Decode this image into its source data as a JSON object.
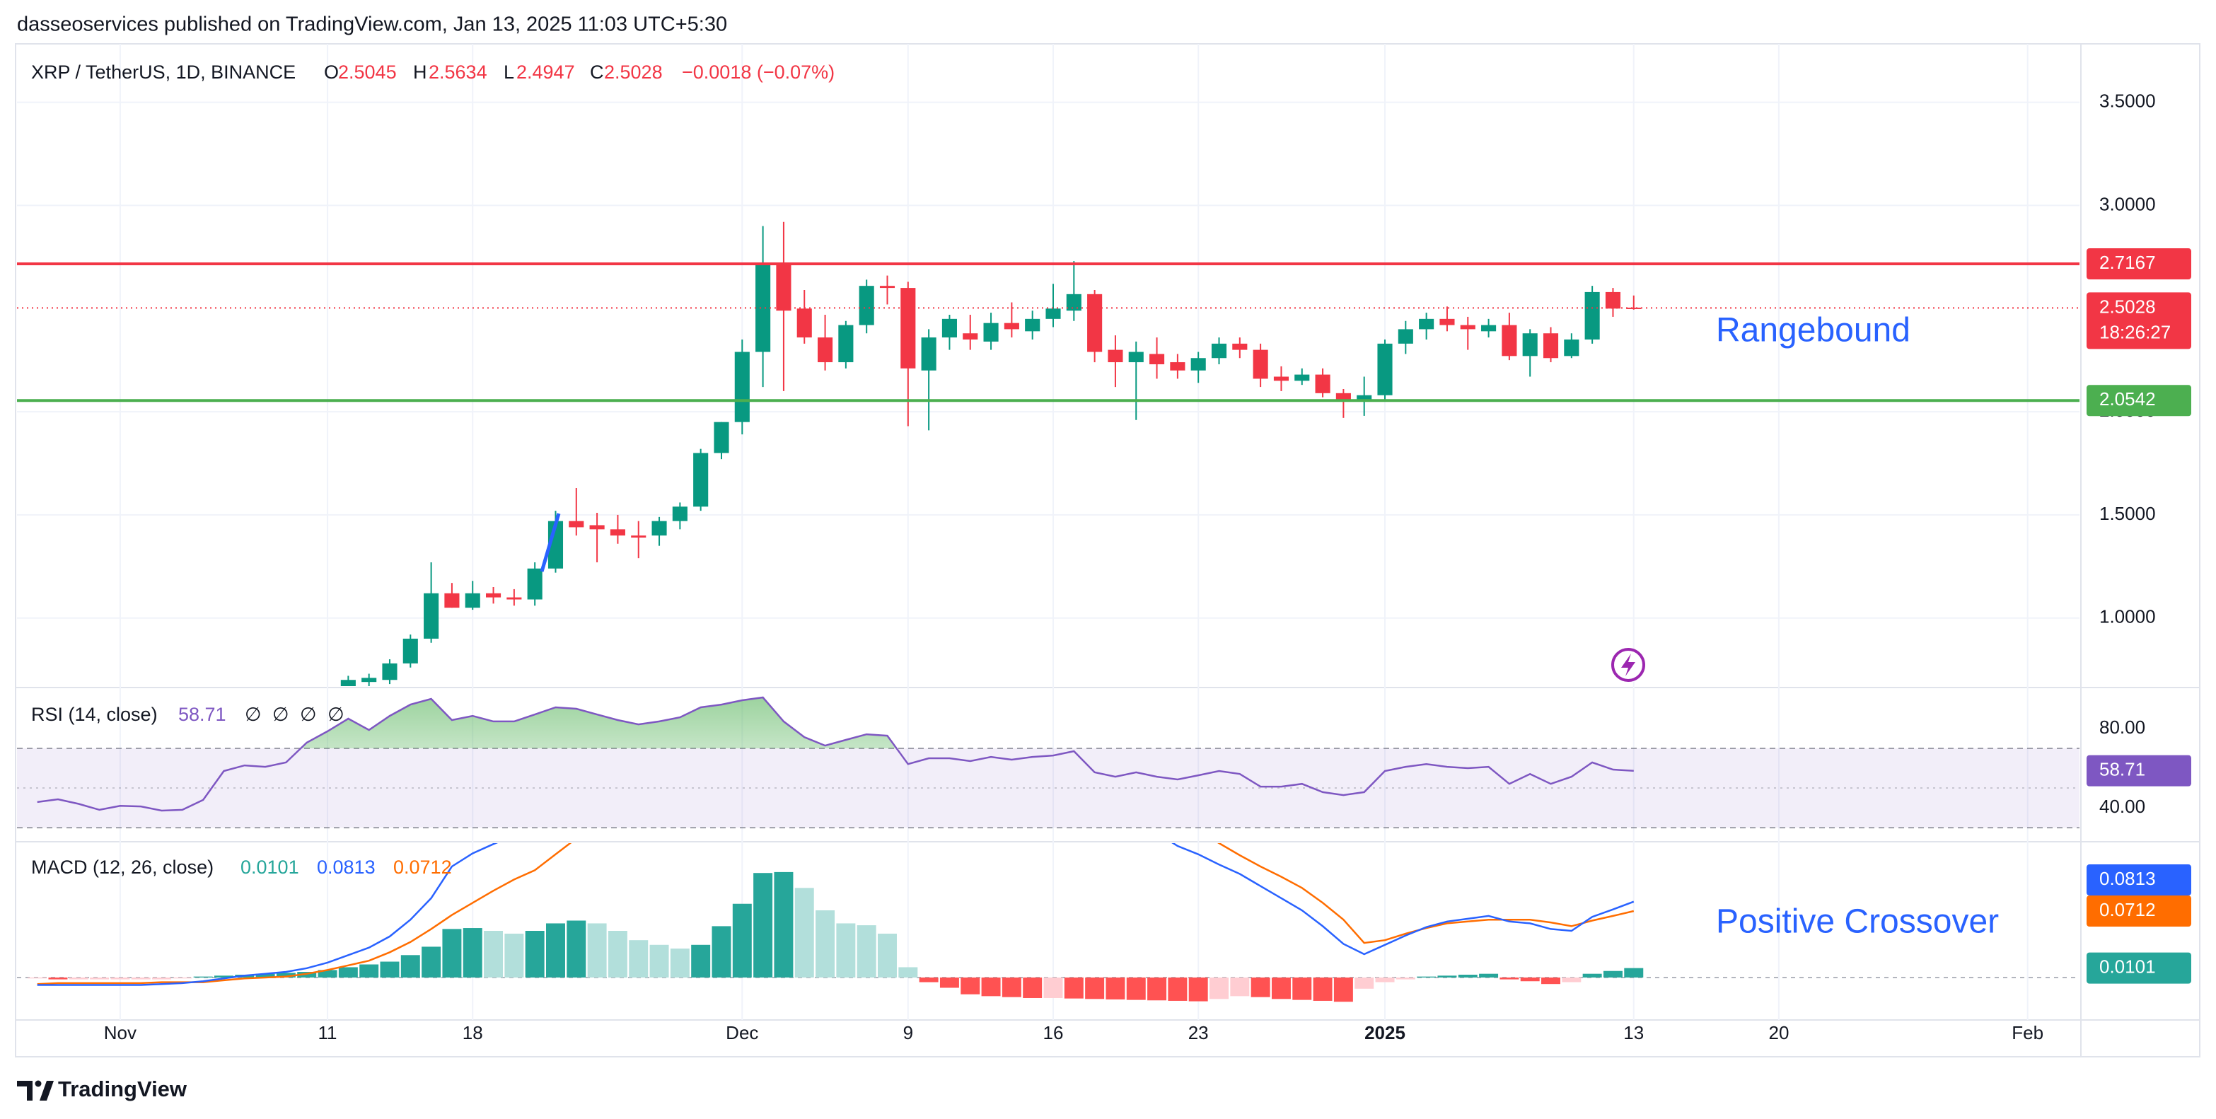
{
  "header": {
    "publisher": "dasseoservices published on TradingView.com, Jan 13, 2025 11:03 UTC+5:30"
  },
  "footer": {
    "brand": "TradingView"
  },
  "chart_data": [
    {
      "type": "candlestick",
      "title": "XRP / TetherUS, 1D, BINANCE",
      "ohlc_labels": [
        "O",
        "H",
        "L",
        "C"
      ],
      "change": "−0.0018 (−0.07%)",
      "countdown": "18:26:27",
      "annotations": [
        "Rangebound"
      ],
      "up_color": "#089981",
      "down_color": "#f23645",
      "grid": true,
      "categories": [
        null,
        null,
        null,
        null,
        "Nov",
        null,
        null,
        null,
        null,
        null,
        null,
        null,
        null,
        null,
        "11",
        null,
        null,
        null,
        null,
        null,
        null,
        "18",
        null,
        null,
        null,
        null,
        null,
        null,
        null,
        null,
        null,
        null,
        null,
        null,
        "Dec",
        null,
        null,
        null,
        null,
        null,
        null,
        null,
        "9",
        null,
        null,
        null,
        null,
        null,
        null,
        "16",
        null,
        null,
        null,
        null,
        null,
        null,
        "23",
        null,
        null,
        null,
        null,
        null,
        null,
        null,
        null,
        "2025",
        null,
        null,
        null,
        null,
        null,
        null,
        null,
        null,
        null,
        null,
        null,
        "13",
        null,
        null,
        null,
        null,
        null,
        null,
        "20",
        null,
        null,
        null,
        null,
        null,
        null,
        null,
        null,
        null,
        null,
        null,
        "Feb",
        null,
        null
      ],
      "open": [
        null,
        null,
        null,
        null,
        null,
        null,
        null,
        null,
        null,
        null,
        null,
        null,
        null,
        null,
        null,
        0.66,
        0.69,
        0.7,
        0.78,
        0.9,
        1.12,
        1.05,
        1.12,
        1.1,
        1.09,
        1.24,
        1.47,
        1.45,
        1.43,
        1.4,
        1.4,
        1.47,
        1.54,
        1.8,
        1.95,
        2.29,
        2.72,
        2.5,
        2.36,
        2.24,
        2.42,
        2.61,
        2.6,
        2.2,
        2.36,
        2.38,
        2.34,
        2.43,
        2.39,
        2.45,
        2.49,
        2.57,
        2.3,
        2.24,
        2.28,
        2.24,
        2.2,
        2.26,
        2.33,
        2.3,
        2.17,
        2.15,
        2.18,
        2.09,
        2.05,
        2.08,
        2.33,
        2.4,
        2.45,
        2.42,
        2.39,
        2.42,
        2.27,
        2.38,
        2.27,
        2.35,
        2.58,
        2.5045,
        null,
        null,
        null,
        null,
        null,
        null,
        null,
        null,
        null,
        null,
        null,
        null,
        null,
        null,
        null,
        null,
        null,
        null,
        null,
        null,
        null
      ],
      "high": [
        null,
        null,
        null,
        null,
        null,
        null,
        null,
        null,
        null,
        null,
        null,
        null,
        null,
        null,
        null,
        0.72,
        0.73,
        0.8,
        0.92,
        1.27,
        1.17,
        1.18,
        1.15,
        1.14,
        1.27,
        1.52,
        1.63,
        1.51,
        1.5,
        1.47,
        1.49,
        1.56,
        1.82,
        1.95,
        2.35,
        2.9,
        2.92,
        2.59,
        2.47,
        2.44,
        2.64,
        2.66,
        2.63,
        2.4,
        2.47,
        2.47,
        2.48,
        2.53,
        2.49,
        2.62,
        2.73,
        2.59,
        2.37,
        2.34,
        2.36,
        2.28,
        2.29,
        2.36,
        2.36,
        2.33,
        2.22,
        2.21,
        2.21,
        2.11,
        2.17,
        2.35,
        2.44,
        2.48,
        2.51,
        2.46,
        2.45,
        2.48,
        2.4,
        2.41,
        2.38,
        2.61,
        2.6,
        2.5634,
        null,
        null,
        null,
        null,
        null,
        null,
        null,
        null,
        null,
        null,
        null,
        null,
        null,
        null,
        null,
        null,
        null,
        null,
        null,
        null,
        null
      ],
      "low": [
        null,
        null,
        null,
        null,
        null,
        null,
        null,
        null,
        null,
        null,
        null,
        null,
        null,
        null,
        null,
        0.62,
        0.65,
        0.68,
        0.76,
        0.88,
        1.05,
        1.04,
        1.07,
        1.06,
        1.06,
        1.22,
        1.4,
        1.27,
        1.36,
        1.29,
        1.35,
        1.43,
        1.52,
        1.77,
        1.89,
        2.12,
        2.1,
        2.33,
        2.2,
        2.21,
        2.38,
        2.52,
        1.93,
        1.91,
        2.3,
        2.3,
        2.3,
        2.36,
        2.35,
        2.41,
        2.44,
        2.24,
        2.12,
        1.96,
        2.16,
        2.16,
        2.14,
        2.23,
        2.26,
        2.12,
        2.1,
        2.13,
        2.07,
        1.97,
        1.98,
        2.06,
        2.28,
        2.35,
        2.39,
        2.3,
        2.36,
        2.25,
        2.17,
        2.24,
        2.26,
        2.33,
        2.46,
        2.4947,
        null,
        null,
        null,
        null,
        null,
        null,
        null,
        null,
        null,
        null,
        null,
        null,
        null,
        null,
        null,
        null,
        null,
        null,
        null,
        null,
        null
      ],
      "close": [
        null,
        null,
        null,
        null,
        null,
        null,
        null,
        null,
        null,
        null,
        null,
        null,
        null,
        null,
        null,
        0.7,
        0.71,
        0.78,
        0.9,
        1.12,
        1.05,
        1.12,
        1.1,
        1.09,
        1.24,
        1.47,
        1.44,
        1.43,
        1.4,
        1.39,
        1.47,
        1.54,
        1.8,
        1.95,
        2.29,
        2.72,
        2.49,
        2.36,
        2.24,
        2.42,
        2.61,
        2.6,
        2.21,
        2.36,
        2.45,
        2.35,
        2.43,
        2.4,
        2.45,
        2.5,
        2.57,
        2.29,
        2.24,
        2.29,
        2.23,
        2.2,
        2.26,
        2.33,
        2.3,
        2.16,
        2.15,
        2.18,
        2.09,
        2.05,
        2.08,
        2.33,
        2.4,
        2.45,
        2.42,
        2.4,
        2.42,
        2.27,
        2.38,
        2.26,
        2.35,
        2.58,
        2.5,
        2.5028,
        null,
        null,
        null,
        null,
        null,
        null,
        null,
        null,
        null,
        null,
        null,
        null,
        null,
        null,
        null,
        null,
        null,
        null,
        null,
        null,
        null
      ],
      "ylim": [
        0.67,
        3.79
      ],
      "yticks": [
        {
          "value": 1,
          "label": "1.0000"
        },
        {
          "value": 1.5,
          "label": "1.5000"
        },
        {
          "value": 2,
          "label": "2.0000"
        },
        {
          "value": 3,
          "label": "3.0000"
        },
        {
          "value": 3.5,
          "label": "3.5000"
        }
      ],
      "levels": [
        {
          "value": 2.7167,
          "color": "#f23645"
        },
        {
          "value": 2.0542,
          "color": "#4caf50"
        }
      ]
    },
    {
      "type": "rsi",
      "title": "RSI (14, close)",
      "placeholders": "∅ ∅ ∅ ∅",
      "color": "#7e57c2",
      "values": [
        42.9,
        44.3,
        42,
        39,
        41,
        40.7,
        38.6,
        39,
        44,
        58.6,
        61.4,
        60.7,
        62.9,
        72.9,
        78.6,
        85,
        79.3,
        86.4,
        92.1,
        95,
        84.3,
        86.4,
        83.6,
        83.6,
        87.1,
        90.7,
        90,
        87.1,
        84.3,
        82.1,
        83.6,
        85.7,
        90.7,
        92.1,
        94.3,
        95.7,
        83.6,
        75.7,
        71.4,
        74.3,
        77.1,
        76.4,
        62.1,
        65,
        65,
        63.6,
        65.7,
        64.3,
        65.7,
        66.4,
        68.6,
        57.9,
        55.7,
        57.9,
        55.7,
        54.3,
        56.4,
        58.6,
        57.1,
        50.7,
        50.7,
        52.1,
        47.9,
        46.4,
        47.9,
        58.6,
        60.7,
        62.1,
        60.7,
        60,
        60.7,
        52.1,
        57.1,
        52.1,
        55.7,
        62.9,
        59.3,
        58.71,
        null,
        null,
        null,
        null,
        null,
        null,
        null,
        null,
        null,
        null,
        null,
        null,
        null,
        null,
        null,
        null,
        null,
        null,
        null,
        null,
        null
      ],
      "bands": [
        70,
        50,
        30
      ],
      "ylim": [
        23.6,
        100
      ],
      "yticks": [
        {
          "value": 80,
          "label": "80.00"
        },
        {
          "value": 40,
          "label": "40.00"
        }
      ]
    },
    {
      "type": "macd",
      "title": "MACD (12, 26, close)",
      "annotations": [
        "Positive Crossover"
      ],
      "macd_color": "#2962ff",
      "signal_color": "#ff6d00",
      "histogram_colors": {
        "grow_above": "#26a69a",
        "fall_above": "#b2dfdb",
        "grow_below": "#ffcdd2",
        "fall_below": "#ff5252"
      },
      "histogram": [
        -0.001,
        -0.002,
        -0.002,
        -0.002,
        -0.002,
        -0.002,
        -0.002,
        -0.001,
        0.001,
        0.002,
        0.003,
        0.004,
        0.005,
        0.006,
        0.008,
        0.011,
        0.014,
        0.017,
        0.024,
        0.033,
        0.052,
        0.053,
        0.05,
        0.047,
        0.05,
        0.058,
        0.061,
        0.058,
        0.05,
        0.04,
        0.035,
        0.031,
        0.035,
        0.055,
        0.079,
        0.112,
        0.113,
        0.096,
        0.072,
        0.058,
        0.056,
        0.047,
        0.011,
        -0.005,
        -0.011,
        -0.018,
        -0.02,
        -0.021,
        -0.022,
        -0.022,
        -0.0225,
        -0.023,
        -0.0235,
        -0.024,
        -0.0245,
        -0.025,
        -0.0255,
        -0.023,
        -0.02,
        -0.021,
        -0.023,
        -0.024,
        -0.025,
        -0.026,
        -0.012,
        -0.005,
        -0.002,
        0.001,
        0.002,
        0.003,
        0.004,
        -0.002,
        -0.004,
        -0.007,
        -0.005,
        0.004,
        0.007,
        0.0101,
        null,
        null,
        null,
        null,
        null,
        null,
        null,
        null,
        null,
        null,
        null,
        null,
        null,
        null,
        null,
        null,
        null,
        null,
        null,
        null,
        null
      ],
      "macd": [
        -0.008,
        -0.008,
        -0.008,
        -0.008,
        -0.008,
        -0.008,
        -0.007,
        -0.006,
        -0.004,
        -0.001,
        0.002,
        0.004,
        0.006,
        0.01,
        0.016,
        0.024,
        0.032,
        0.044,
        0.062,
        0.085,
        0.119,
        0.133,
        0.143,
        0.152,
        0.165,
        0.19,
        0.21,
        0.22,
        0.222,
        0.218,
        0.22,
        0.225,
        0.24,
        0.265,
        0.3,
        0.35,
        0.38,
        0.38,
        0.37,
        0.37,
        0.375,
        0.37,
        0.34,
        0.32,
        0.3,
        0.28,
        0.265,
        0.25,
        0.235,
        0.225,
        0.215,
        0.195,
        0.18,
        0.167,
        0.155,
        0.141,
        0.132,
        0.121,
        0.111,
        0.098,
        0.085,
        0.072,
        0.055,
        0.036,
        0.025,
        0.035,
        0.045,
        0.054,
        0.06,
        0.063,
        0.066,
        0.06,
        0.058,
        0.052,
        0.05,
        0.065,
        0.073,
        0.0813,
        null,
        null,
        null,
        null,
        null,
        null,
        null,
        null,
        null,
        null,
        null,
        null,
        null,
        null,
        null,
        null,
        null,
        null,
        null,
        null,
        null
      ],
      "signal": [
        -0.007,
        -0.006,
        -0.006,
        -0.006,
        -0.006,
        -0.006,
        -0.005,
        -0.005,
        -0.005,
        -0.003,
        -0.001,
        0,
        0.001,
        0.004,
        0.008,
        0.013,
        0.018,
        0.027,
        0.038,
        0.052,
        0.067,
        0.08,
        0.093,
        0.105,
        0.115,
        0.132,
        0.149,
        0.162,
        0.172,
        0.178,
        0.185,
        0.194,
        0.205,
        0.21,
        0.221,
        0.238,
        0.267,
        0.284,
        0.298,
        0.312,
        0.319,
        0.323,
        0.329,
        0.325,
        0.311,
        0.298,
        0.285,
        0.271,
        0.257,
        0.247,
        0.2375,
        0.218,
        0.2035,
        0.191,
        0.1795,
        0.166,
        0.1575,
        0.144,
        0.131,
        0.119,
        0.108,
        0.096,
        0.08,
        0.062,
        0.037,
        0.04,
        0.047,
        0.053,
        0.058,
        0.06,
        0.062,
        0.062,
        0.062,
        0.059,
        0.055,
        0.061,
        0.066,
        0.0712,
        null,
        null,
        null,
        null,
        null,
        null,
        null,
        null,
        null,
        null,
        null,
        null,
        null,
        null,
        null,
        null,
        null,
        null,
        null,
        null,
        null
      ],
      "ylim": [
        -0.044,
        0.144
      ]
    }
  ]
}
